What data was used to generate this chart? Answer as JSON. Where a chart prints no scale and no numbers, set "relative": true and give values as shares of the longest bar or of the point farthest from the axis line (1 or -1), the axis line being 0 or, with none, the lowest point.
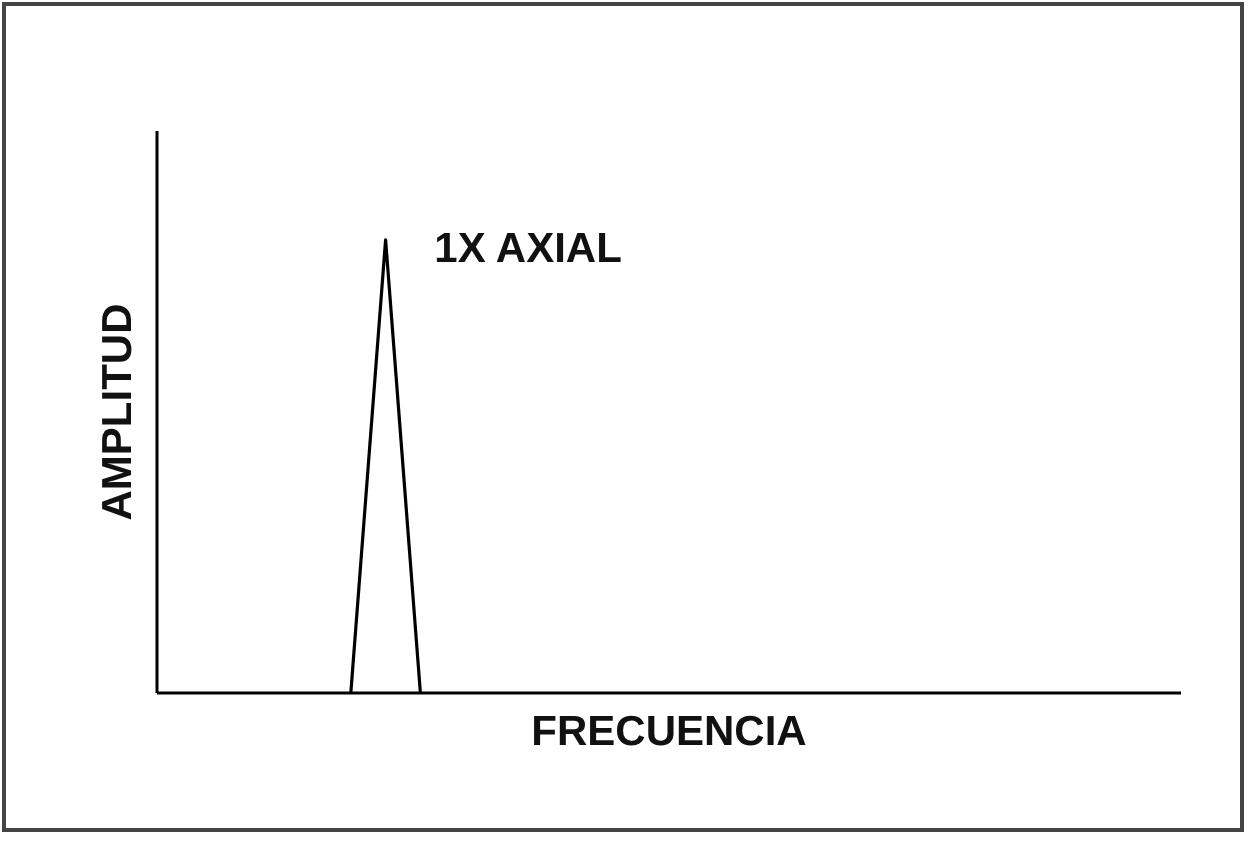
{
  "chart_data": {
    "type": "line",
    "relative": true,
    "xlabel": "FRECUENCIA",
    "ylabel": "AMPLITUD",
    "annotations": [
      "1X AXIAL"
    ],
    "color": "#000000",
    "marker": "none",
    "line_style": "solid",
    "categories": [
      null,
      null,
      null,
      null,
      null,
      null,
      null,
      null,
      null,
      null,
      null,
      null,
      null,
      null,
      null,
      null,
      null,
      null,
      null,
      null,
      null,
      null,
      null,
      null,
      null,
      null,
      null,
      null,
      null
    ],
    "values": [
      null,
      null,
      null,
      null,
      null,
      0,
      1,
      0,
      null,
      null,
      null,
      null,
      null,
      null,
      null,
      null,
      null,
      null,
      null,
      null,
      null,
      null,
      null,
      null,
      null,
      null,
      null,
      null,
      null
    ]
  }
}
